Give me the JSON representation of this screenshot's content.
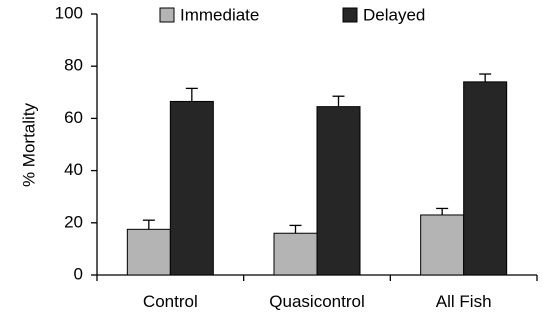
{
  "chart_data": {
    "type": "bar",
    "categories": [
      "Control",
      "Quasicontrol",
      "All Fish"
    ],
    "series": [
      {
        "name": "Immediate",
        "values": [
          17.5,
          16,
          23
        ],
        "errors": [
          3.5,
          3,
          2.5
        ],
        "color": "#b4b4b4"
      },
      {
        "name": "Delayed",
        "values": [
          66.5,
          64.5,
          74
        ],
        "errors": [
          5,
          4,
          3
        ],
        "color": "#262626"
      }
    ],
    "title": "",
    "xlabel": "",
    "ylabel": "% Mortality",
    "ylim": [
      0,
      100
    ],
    "yticks": [
      0,
      20,
      40,
      60,
      80,
      100
    ],
    "grid": false,
    "legend_position": "top"
  }
}
